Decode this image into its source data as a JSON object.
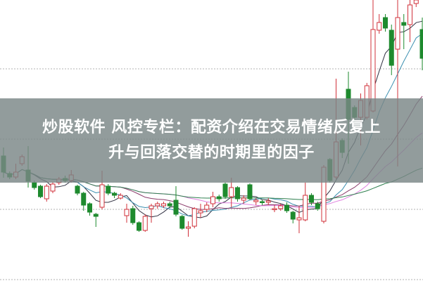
{
  "banner": {
    "line1": "炒股软件  风控专栏：配资介绍在交易情绪反复上",
    "line2": "升与回落交替的时期里的因子"
  },
  "chart_data": {
    "type": "candlestick",
    "grid": "horizontal dotted",
    "colors": {
      "up": "#d0303a",
      "down": "#1e8a2e",
      "grid": "#b0b0b0",
      "ma": [
        "#333344",
        "#3a8fb0",
        "#8a3a6a",
        "#e080e0",
        "#2f7f4f"
      ]
    },
    "candles": [
      {
        "o": 178,
        "h": 190,
        "l": 147,
        "c": 155
      },
      {
        "o": 153,
        "h": 156,
        "l": 145,
        "c": 148
      },
      {
        "o": 148,
        "h": 167,
        "l": 145,
        "c": 155
      },
      {
        "o": 167,
        "h": 180,
        "l": 164,
        "c": 177
      },
      {
        "o": 158,
        "h": 192,
        "l": 133,
        "c": 142
      },
      {
        "o": 140,
        "h": 143,
        "l": 130,
        "c": 133
      },
      {
        "o": 135,
        "h": 137,
        "l": 118,
        "c": 120
      },
      {
        "o": 117,
        "h": 138,
        "l": 113,
        "c": 135
      },
      {
        "o": 128,
        "h": 141,
        "l": 125,
        "c": 138
      },
      {
        "o": 140,
        "h": 148,
        "l": 137,
        "c": 145
      },
      {
        "o": 146,
        "h": 150,
        "l": 140,
        "c": 143
      },
      {
        "o": 143,
        "h": 158,
        "l": 140,
        "c": 151
      },
      {
        "o": 135,
        "h": 137,
        "l": 122,
        "c": 125
      },
      {
        "o": 125,
        "h": 127,
        "l": 100,
        "c": 108
      },
      {
        "o": 110,
        "h": 112,
        "l": 93,
        "c": 98
      },
      {
        "o": 95,
        "h": 97,
        "l": 77,
        "c": 92
      },
      {
        "o": 105,
        "h": 157,
        "l": 102,
        "c": 137
      },
      {
        "o": 135,
        "h": 138,
        "l": 122,
        "c": 125
      },
      {
        "o": 125,
        "h": 127,
        "l": 118,
        "c": 122
      },
      {
        "o": 118,
        "h": 125,
        "l": 116,
        "c": 122
      },
      {
        "o": 93,
        "h": 110,
        "l": 83,
        "c": 102
      },
      {
        "o": 103,
        "h": 107,
        "l": 80,
        "c": 83
      },
      {
        "o": 83,
        "h": 85,
        "l": 70,
        "c": 72
      },
      {
        "o": 72,
        "h": 95,
        "l": 70,
        "c": 92
      },
      {
        "o": 103,
        "h": 110,
        "l": 83,
        "c": 107
      },
      {
        "o": 107,
        "h": 113,
        "l": 103,
        "c": 110
      },
      {
        "o": 107,
        "h": 113,
        "l": 104,
        "c": 110
      },
      {
        "o": 110,
        "h": 113,
        "l": 104,
        "c": 107
      },
      {
        "o": 115,
        "h": 135,
        "l": 92,
        "c": 95
      },
      {
        "o": 92,
        "h": 94,
        "l": 73,
        "c": 75
      },
      {
        "o": 75,
        "h": 85,
        "l": 63,
        "c": 77
      },
      {
        "o": 78,
        "h": 105,
        "l": 75,
        "c": 103
      },
      {
        "o": 97,
        "h": 110,
        "l": 90,
        "c": 100
      },
      {
        "o": 102,
        "h": 112,
        "l": 98,
        "c": 108
      },
      {
        "o": 110,
        "h": 127,
        "l": 105,
        "c": 120
      },
      {
        "o": 120,
        "h": 123,
        "l": 113,
        "c": 117
      },
      {
        "o": 138,
        "h": 140,
        "l": 117,
        "c": 120
      },
      {
        "o": 120,
        "h": 147,
        "l": 105,
        "c": 133
      },
      {
        "o": 133,
        "h": 135,
        "l": 113,
        "c": 117
      },
      {
        "o": 115,
        "h": 122,
        "l": 110,
        "c": 118
      },
      {
        "o": 137,
        "h": 139,
        "l": 115,
        "c": 117
      },
      {
        "o": 113,
        "h": 118,
        "l": 108,
        "c": 115
      },
      {
        "o": 113,
        "h": 116,
        "l": 108,
        "c": 112
      },
      {
        "o": 112,
        "h": 118,
        "l": 108,
        "c": 114
      },
      {
        "o": 102,
        "h": 108,
        "l": 98,
        "c": 103
      },
      {
        "o": 103,
        "h": 110,
        "l": 100,
        "c": 107
      },
      {
        "o": 108,
        "h": 112,
        "l": 97,
        "c": 100
      },
      {
        "o": 98,
        "h": 100,
        "l": 82,
        "c": 88
      },
      {
        "o": 87,
        "h": 107,
        "l": 68,
        "c": 90
      },
      {
        "o": 87,
        "h": 140,
        "l": 85,
        "c": 122
      },
      {
        "o": 122,
        "h": 125,
        "l": 108,
        "c": 112
      },
      {
        "o": 110,
        "h": 113,
        "l": 100,
        "c": 103
      },
      {
        "o": 85,
        "h": 165,
        "l": 82,
        "c": 162
      },
      {
        "o": 173,
        "h": 175,
        "l": 140,
        "c": 143
      },
      {
        "o": 148,
        "h": 288,
        "l": 145,
        "c": 198
      },
      {
        "o": 200,
        "h": 203,
        "l": 175,
        "c": 183
      },
      {
        "o": 273,
        "h": 298,
        "l": 167,
        "c": 230
      },
      {
        "o": 247,
        "h": 250,
        "l": 225,
        "c": 233
      },
      {
        "o": 233,
        "h": 267,
        "l": 193,
        "c": 257
      },
      {
        "o": 233,
        "h": 282,
        "l": 230,
        "c": 278
      },
      {
        "o": 242,
        "h": 400,
        "l": 240,
        "c": 358
      },
      {
        "o": 357,
        "h": 380,
        "l": 352,
        "c": 368
      },
      {
        "o": 375,
        "h": 380,
        "l": 355,
        "c": 360
      },
      {
        "o": 357,
        "h": 365,
        "l": 293,
        "c": 307
      },
      {
        "o": 330,
        "h": 400,
        "l": 163,
        "c": 375
      },
      {
        "o": 368,
        "h": 380,
        "l": 330,
        "c": 364
      },
      {
        "o": 365,
        "h": 400,
        "l": 340,
        "c": 393
      },
      {
        "o": 395,
        "h": 400,
        "l": 390,
        "c": 400
      },
      {
        "o": 358,
        "h": 375,
        "l": 300,
        "c": 317
      }
    ]
  }
}
